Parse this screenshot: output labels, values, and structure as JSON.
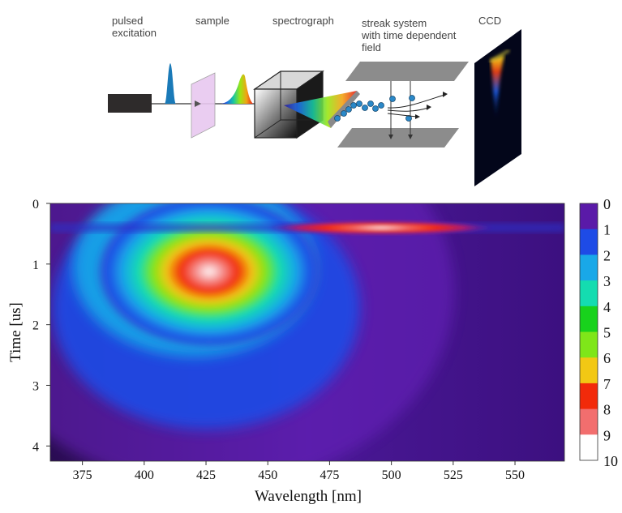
{
  "diagram": {
    "labels": {
      "pulsed": [
        "pulsed",
        "excitation"
      ],
      "sample": "sample",
      "spectrograph": "spectrograph",
      "streak": [
        "streak system",
        "with time dependent",
        "field"
      ],
      "ccd": "CCD"
    }
  },
  "chart_data": {
    "type": "heatmap",
    "xlabel": "Wavelength [nm]",
    "ylabel": "Time [us]",
    "xlim": [
      362,
      570
    ],
    "ylim": [
      0,
      4.25
    ],
    "x_ticks": [
      375,
      400,
      425,
      450,
      475,
      500,
      525,
      550
    ],
    "y_ticks": [
      0,
      1,
      2,
      3,
      4
    ],
    "colorbar": {
      "ticks": [
        0,
        1,
        2,
        3,
        4,
        5,
        6,
        7,
        8,
        9,
        10
      ],
      "colors": [
        "#5a1aa8",
        "#1e4be6",
        "#19a8e8",
        "#14dcb0",
        "#18d21c",
        "#7fe619",
        "#f2c814",
        "#f22a0a",
        "#f26e6e",
        "#ffffff"
      ]
    },
    "features": [
      {
        "name": "broad emission",
        "center_wavelength": 428,
        "center_time": 1.05,
        "peak_level": 10
      },
      {
        "name": "narrow emission",
        "center_wavelength": 490,
        "center_time": 0.42,
        "peak_level": 9
      }
    ]
  }
}
